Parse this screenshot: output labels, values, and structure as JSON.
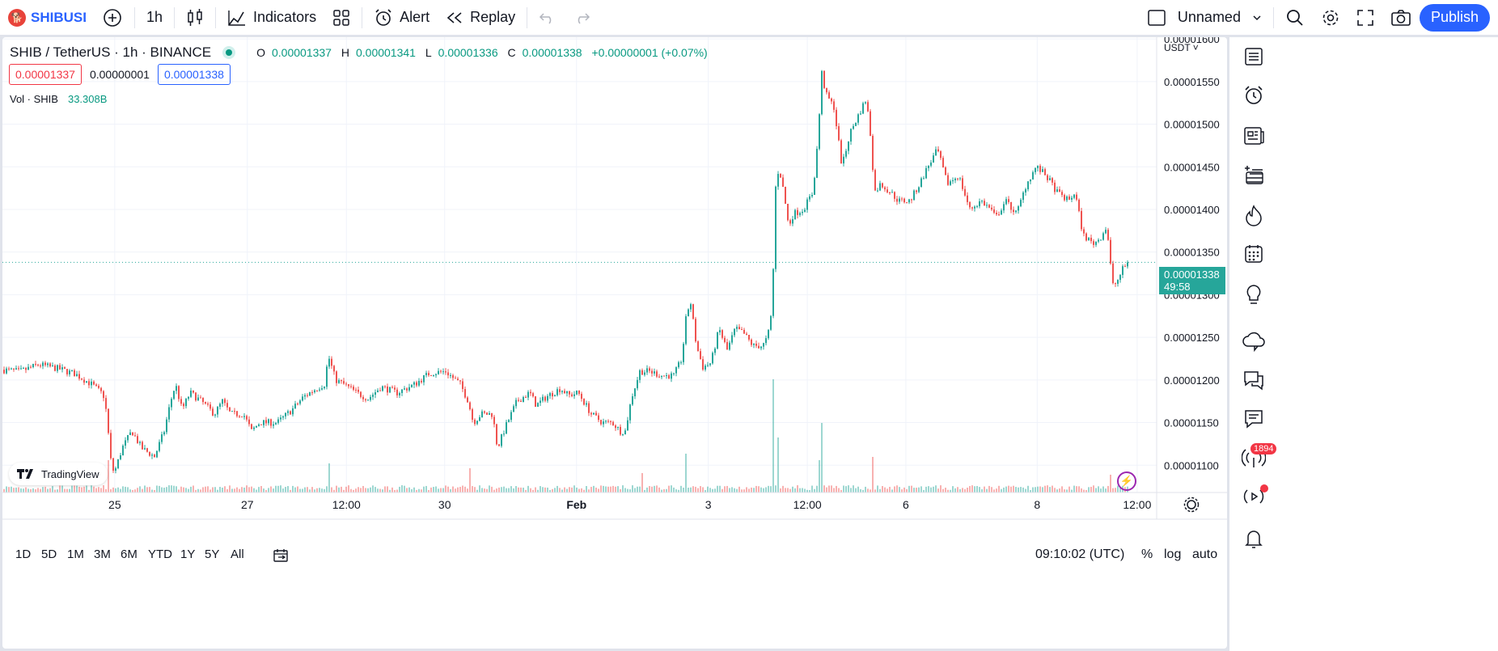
{
  "toolbar": {
    "symbol": "SHIBUSDT",
    "interval": "1h",
    "indicators_label": "Indicators",
    "alert_label": "Alert",
    "replay_label": "Replay",
    "layout_name": "Unnamed",
    "publish_label": "Publish"
  },
  "legend": {
    "title": "SHIB / TetherUS · 1h · BINANCE",
    "o_label": "O",
    "o": "0.00001337",
    "h_label": "H",
    "h": "0.00001341",
    "l_label": "L",
    "l": "0.00001336",
    "c_label": "C",
    "c": "0.00001338",
    "change": "+0.00000001 (+0.07%)",
    "sell_price": "0.00001337",
    "spread": "0.00000001",
    "buy_price": "0.00001338",
    "vol_label": "Vol · SHIB",
    "vol_value": "33.308B"
  },
  "price_axis": {
    "currency": "USDT",
    "last_price": "0.00001338",
    "countdown": "49:58"
  },
  "chart_data": {
    "type": "candlestick",
    "y_ticks": [
      "0.00001600",
      "0.00001550",
      "0.00001500",
      "0.00001450",
      "0.00001400",
      "0.00001350",
      "0.00001300",
      "0.00001250",
      "0.00001200",
      "0.00001150",
      "0.00001100"
    ],
    "y_tick_values": [
      1600,
      1550,
      1500,
      1450,
      1400,
      1350,
      1300,
      1250,
      1200,
      1150,
      1100
    ],
    "y_range": [
      1068,
      1602
    ],
    "y_unit_note": "",
    "x_ticks": [
      "25",
      "27",
      "12:00",
      "30",
      "Feb",
      "3",
      "12:00",
      "6",
      "8",
      "12:00"
    ],
    "x_tick_frac": [
      0.0917,
      0.2,
      0.2809,
      0.3611,
      0.4688,
      0.5764,
      0.6573,
      0.7377,
      0.845,
      0.9266
    ],
    "anchors": [
      [
        0,
        1212
      ],
      [
        22,
        1210
      ],
      [
        45,
        1218
      ],
      [
        70,
        1213
      ],
      [
        90,
        1207
      ],
      [
        110,
        1195
      ],
      [
        122,
        1185
      ],
      [
        126,
        1180
      ],
      [
        130,
        1150
      ],
      [
        133,
        1110
      ],
      [
        138,
        1090
      ],
      [
        148,
        1120
      ],
      [
        160,
        1140
      ],
      [
        172,
        1120
      ],
      [
        188,
        1110
      ],
      [
        200,
        1140
      ],
      [
        208,
        1175
      ],
      [
        214,
        1195
      ],
      [
        222,
        1165
      ],
      [
        232,
        1185
      ],
      [
        246,
        1175
      ],
      [
        262,
        1160
      ],
      [
        272,
        1175
      ],
      [
        282,
        1160
      ],
      [
        298,
        1160
      ],
      [
        308,
        1140
      ],
      [
        318,
        1150
      ],
      [
        340,
        1150
      ],
      [
        358,
        1165
      ],
      [
        372,
        1180
      ],
      [
        388,
        1190
      ],
      [
        398,
        1195
      ],
      [
        403,
        1228
      ],
      [
        412,
        1200
      ],
      [
        422,
        1195
      ],
      [
        438,
        1185
      ],
      [
        452,
        1178
      ],
      [
        468,
        1192
      ],
      [
        488,
        1185
      ],
      [
        510,
        1195
      ],
      [
        528,
        1208
      ],
      [
        548,
        1210
      ],
      [
        566,
        1195
      ],
      [
        576,
        1175
      ],
      [
        582,
        1150
      ],
      [
        592,
        1160
      ],
      [
        606,
        1160
      ],
      [
        612,
        1120
      ],
      [
        622,
        1145
      ],
      [
        636,
        1175
      ],
      [
        652,
        1185
      ],
      [
        660,
        1170
      ],
      [
        672,
        1180
      ],
      [
        690,
        1190
      ],
      [
        700,
        1182
      ],
      [
        712,
        1185
      ],
      [
        728,
        1160
      ],
      [
        742,
        1150
      ],
      [
        754,
        1150
      ],
      [
        764,
        1140
      ],
      [
        770,
        1140
      ],
      [
        778,
        1180
      ],
      [
        788,
        1210
      ],
      [
        800,
        1210
      ],
      [
        816,
        1205
      ],
      [
        830,
        1205
      ],
      [
        840,
        1225
      ],
      [
        846,
        1280
      ],
      [
        851,
        1290
      ],
      [
        858,
        1240
      ],
      [
        866,
        1215
      ],
      [
        876,
        1220
      ],
      [
        886,
        1260
      ],
      [
        896,
        1235
      ],
      [
        906,
        1260
      ],
      [
        916,
        1255
      ],
      [
        928,
        1240
      ],
      [
        940,
        1240
      ],
      [
        946,
        1250
      ],
      [
        952,
        1285
      ],
      [
        955,
        1420
      ],
      [
        960,
        1450
      ],
      [
        966,
        1420
      ],
      [
        972,
        1380
      ],
      [
        978,
        1395
      ],
      [
        990,
        1400
      ],
      [
        1002,
        1420
      ],
      [
        1008,
        1480
      ],
      [
        1013,
        1560
      ],
      [
        1018,
        1535
      ],
      [
        1028,
        1520
      ],
      [
        1038,
        1450
      ],
      [
        1048,
        1490
      ],
      [
        1058,
        1510
      ],
      [
        1068,
        1530
      ],
      [
        1074,
        1480
      ],
      [
        1078,
        1420
      ],
      [
        1086,
        1430
      ],
      [
        1098,
        1420
      ],
      [
        1108,
        1410
      ],
      [
        1122,
        1410
      ],
      [
        1134,
        1430
      ],
      [
        1144,
        1450
      ],
      [
        1156,
        1470
      ],
      [
        1168,
        1430
      ],
      [
        1182,
        1440
      ],
      [
        1196,
        1400
      ],
      [
        1210,
        1410
      ],
      [
        1222,
        1400
      ],
      [
        1228,
        1390
      ],
      [
        1240,
        1410
      ],
      [
        1254,
        1395
      ],
      [
        1266,
        1430
      ],
      [
        1278,
        1450
      ],
      [
        1290,
        1440
      ],
      [
        1304,
        1420
      ],
      [
        1318,
        1410
      ],
      [
        1326,
        1420
      ],
      [
        1336,
        1370
      ],
      [
        1348,
        1360
      ],
      [
        1356,
        1365
      ],
      [
        1364,
        1378
      ],
      [
        1368,
        1360
      ],
      [
        1372,
        1310
      ],
      [
        1378,
        1315
      ],
      [
        1386,
        1332
      ],
      [
        1393,
        1338
      ]
    ],
    "volume_spikes": [
      [
        130,
        40
      ],
      [
        403,
        36
      ],
      [
        578,
        30
      ],
      [
        846,
        48
      ],
      [
        953,
        140
      ],
      [
        958,
        68
      ],
      [
        1014,
        86
      ],
      [
        1077,
        44
      ],
      [
        1010,
        40
      ],
      [
        790,
        24
      ],
      [
        1370,
        22
      ]
    ],
    "last_value": 1338
  },
  "bottom": {
    "ranges": [
      "1D",
      "5D",
      "1M",
      "3M",
      "6M",
      "YTD",
      "1Y",
      "5Y",
      "All"
    ],
    "time": "09:10:02 (UTC)",
    "pct": "%",
    "log": "log",
    "auto": "auto"
  },
  "rightbar": {
    "badge": "1894"
  },
  "tv_logo": "TradingView",
  "colors": {
    "up": "#26a69a",
    "down": "#ef5350",
    "accent": "#2962ff"
  }
}
